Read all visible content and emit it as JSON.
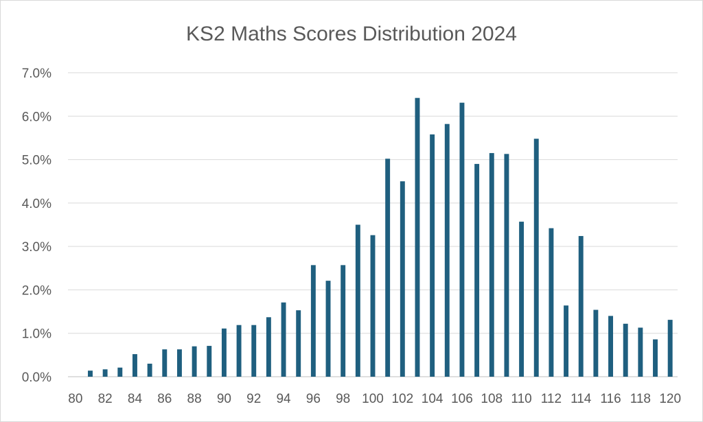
{
  "chart_data": {
    "type": "bar",
    "title": "KS2 Maths Scores Distribution 2024",
    "xlabel": "",
    "ylabel": "",
    "ylim": [
      0,
      0.07
    ],
    "y_ticks": [
      0,
      0.01,
      0.02,
      0.03,
      0.04,
      0.05,
      0.06,
      0.07
    ],
    "y_tick_labels": [
      "0.0%",
      "1.0%",
      "2.0%",
      "3.0%",
      "4.0%",
      "5.0%",
      "6.0%",
      "7.0%"
    ],
    "x_tick_labels": [
      "80",
      "82",
      "84",
      "86",
      "88",
      "90",
      "92",
      "94",
      "96",
      "98",
      "100",
      "102",
      "104",
      "106",
      "108",
      "110",
      "112",
      "114",
      "116",
      "118",
      "120"
    ],
    "categories": [
      80,
      81,
      82,
      83,
      84,
      85,
      86,
      87,
      88,
      89,
      90,
      91,
      92,
      93,
      94,
      95,
      96,
      97,
      98,
      99,
      100,
      101,
      102,
      103,
      104,
      105,
      106,
      107,
      108,
      109,
      110,
      111,
      112,
      113,
      114,
      115,
      116,
      117,
      118,
      119,
      120
    ],
    "values": [
      0,
      0.0014,
      0.0017,
      0.0021,
      0.0052,
      0.003,
      0.0063,
      0.0063,
      0.007,
      0.0071,
      0.0111,
      0.0119,
      0.0119,
      0.0137,
      0.0171,
      0.0153,
      0.0257,
      0.0221,
      0.0257,
      0.035,
      0.0326,
      0.0502,
      0.045,
      0.0642,
      0.0558,
      0.0582,
      0.0631,
      0.049,
      0.0515,
      0.0513,
      0.0357,
      0.0548,
      0.0342,
      0.0164,
      0.0324,
      0.0154,
      0.014,
      0.0122,
      0.0113,
      0.0086,
      0.0131
    ],
    "grid": true,
    "legend": "none",
    "colors": {
      "bar": "#1f5f7f",
      "grid": "#d9d9d9",
      "text": "#595959"
    }
  }
}
